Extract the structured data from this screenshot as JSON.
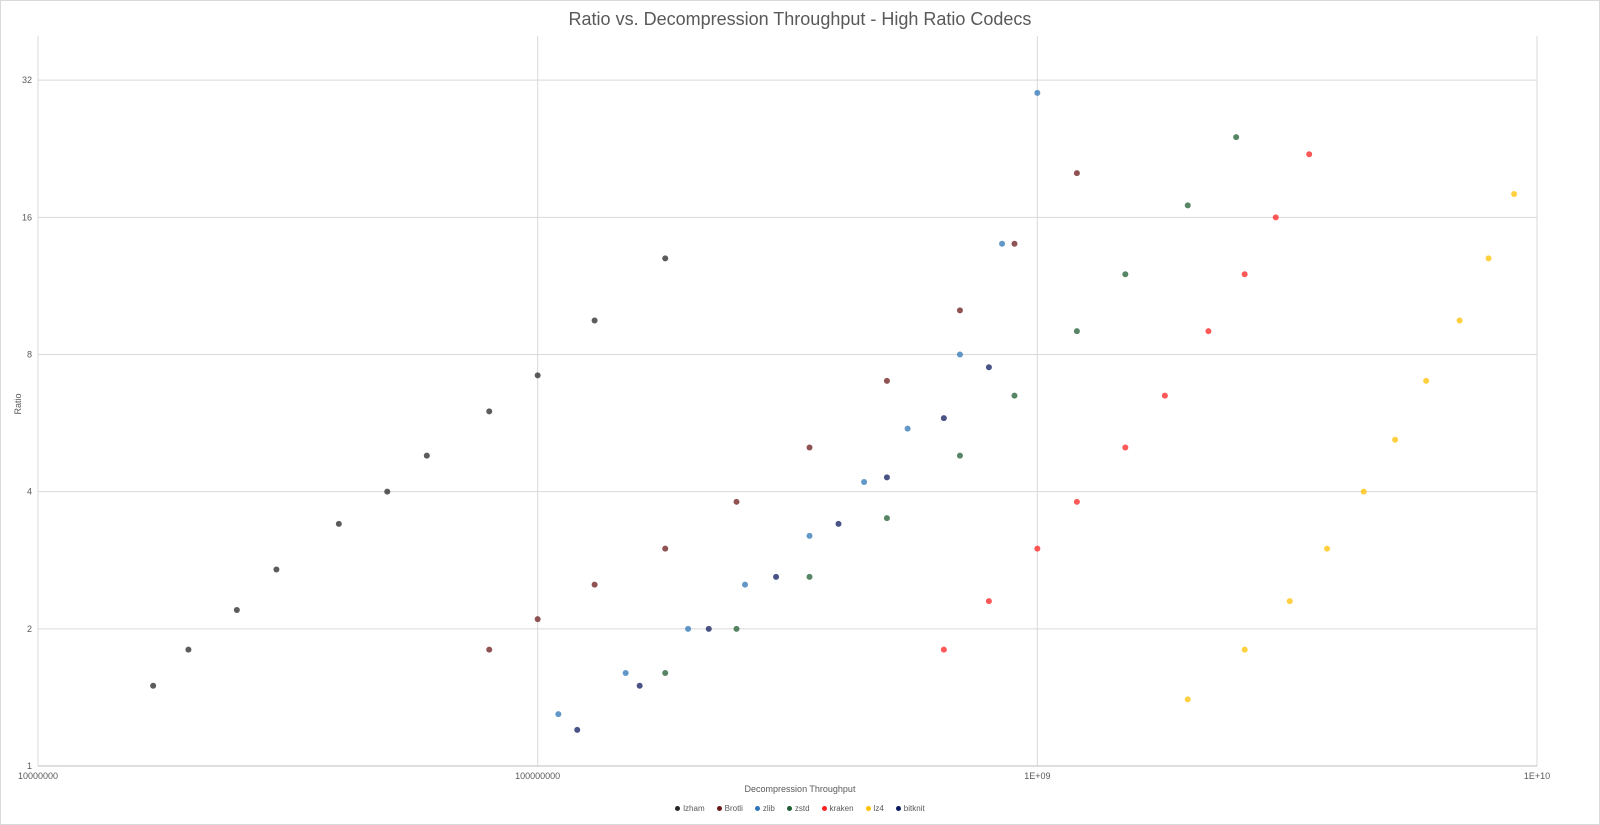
{
  "chart_data": {
    "type": "scatter",
    "title": "Ratio vs. Decompression Throughput - High Ratio Codecs",
    "xlabel": "Decompression Throughput",
    "ylabel": "Ratio",
    "x_scale": "log10",
    "y_scale": "log2",
    "xlim": [
      10000000,
      10000000000
    ],
    "ylim": [
      1,
      40
    ],
    "x_ticks": [
      10000000,
      100000000,
      1000000000,
      10000000000
    ],
    "x_tick_labels": [
      "10000000",
      "100000000",
      "1E+09",
      "1E+10"
    ],
    "y_ticks": [
      1,
      2,
      4,
      8,
      16,
      32
    ],
    "y_tick_labels": [
      "1",
      "2",
      "4",
      "8",
      "16",
      "32"
    ],
    "grid": true,
    "legend_position": "bottom",
    "series": [
      {
        "name": "lzham",
        "color": "#262626",
        "x": [
          17000000,
          20000000,
          25000000,
          30000000,
          40000000,
          50000000,
          60000000,
          80000000,
          100000000,
          130000000,
          180000000
        ],
        "y": [
          1.5,
          1.8,
          2.2,
          2.7,
          3.4,
          4.0,
          4.8,
          6.0,
          7.2,
          9.5,
          13.0
        ]
      },
      {
        "name": "Brotli",
        "color": "#6b1a1a",
        "x": [
          80000000,
          100000000,
          130000000,
          180000000,
          250000000,
          350000000,
          500000000,
          700000000,
          900000000,
          1200000000
        ],
        "y": [
          1.8,
          2.1,
          2.5,
          3.0,
          3.8,
          5.0,
          7.0,
          10.0,
          14.0,
          20.0
        ]
      },
      {
        "name": "zlib",
        "color": "#2e75b6",
        "x": [
          110000000,
          150000000,
          200000000,
          260000000,
          350000000,
          450000000,
          550000000,
          700000000,
          850000000,
          1000000000
        ],
        "y": [
          1.3,
          1.6,
          2.0,
          2.5,
          3.2,
          4.2,
          5.5,
          8.0,
          14.0,
          30.0
        ]
      },
      {
        "name": "zstd",
        "color": "#1e5e32",
        "x": [
          180000000,
          250000000,
          350000000,
          500000000,
          700000000,
          900000000,
          1200000000,
          1500000000,
          2000000000,
          2500000000
        ],
        "y": [
          1.6,
          2.0,
          2.6,
          3.5,
          4.8,
          6.5,
          9.0,
          12.0,
          17.0,
          24.0
        ]
      },
      {
        "name": "kraken",
        "color": "#ff2020",
        "x": [
          650000000,
          800000000,
          1000000000,
          1200000000,
          1500000000,
          1800000000,
          2200000000,
          2600000000,
          3000000000,
          3500000000
        ],
        "y": [
          1.8,
          2.3,
          3.0,
          3.8,
          5.0,
          6.5,
          9.0,
          12.0,
          16.0,
          22.0
        ]
      },
      {
        "name": "lz4",
        "color": "#ffc000",
        "x": [
          2000000000,
          2600000000,
          3200000000,
          3800000000,
          4500000000,
          5200000000,
          6000000000,
          7000000000,
          8000000000,
          9000000000
        ],
        "y": [
          1.4,
          1.8,
          2.3,
          3.0,
          4.0,
          5.2,
          7.0,
          9.5,
          13.0,
          18.0
        ]
      },
      {
        "name": "bitknit",
        "color": "#0c1a5c",
        "x": [
          120000000,
          160000000,
          220000000,
          300000000,
          400000000,
          500000000,
          650000000,
          800000000
        ],
        "y": [
          1.2,
          1.5,
          2.0,
          2.6,
          3.4,
          4.3,
          5.8,
          7.5
        ]
      }
    ]
  }
}
